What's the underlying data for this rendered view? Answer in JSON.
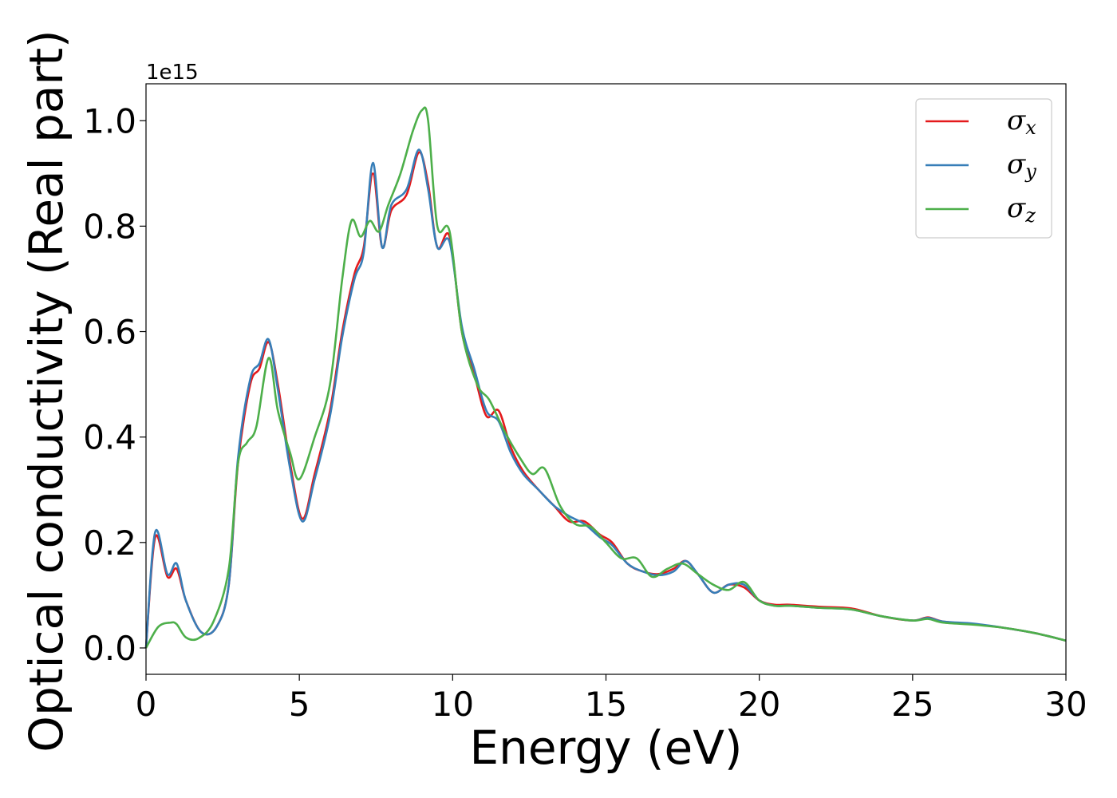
{
  "chart_data": {
    "type": "line",
    "xlabel": "Energy (eV)",
    "ylabel": "Optical conductivity (Real part)",
    "y_offset_label": "1e15",
    "xlim": [
      0,
      30
    ],
    "ylim": [
      -0.05,
      1.07
    ],
    "xticks": [
      0,
      5,
      10,
      15,
      20,
      25,
      30
    ],
    "xtick_labels": [
      "0",
      "5",
      "10",
      "15",
      "20",
      "25",
      "30"
    ],
    "yticks": [
      0.0,
      0.2,
      0.4,
      0.6,
      0.8,
      1.0
    ],
    "ytick_labels": [
      "0.0",
      "0.2",
      "0.4",
      "0.6",
      "0.8",
      "1.0"
    ],
    "grid": false,
    "legend_position": "top-right",
    "series": [
      {
        "name": "σx",
        "symbol": "σ",
        "subscript": "x",
        "color": "#e41a1c",
        "x": [
          0,
          0.3,
          0.7,
          1.0,
          1.3,
          1.8,
          2.3,
          2.7,
          3.0,
          3.4,
          3.7,
          4.0,
          4.3,
          4.7,
          5.1,
          5.5,
          6.0,
          6.4,
          6.8,
          7.1,
          7.4,
          7.7,
          8.0,
          8.5,
          8.9,
          9.2,
          9.5,
          9.9,
          10.3,
          10.7,
          11.1,
          11.5,
          11.9,
          12.3,
          12.8,
          13.3,
          13.8,
          14.3,
          14.8,
          15.2,
          15.7,
          16.2,
          16.7,
          17.2,
          17.6,
          18.0,
          18.5,
          19.0,
          19.5,
          20.0,
          20.5,
          21.0,
          22.0,
          23.0,
          24.0,
          25.0,
          25.5,
          26.0,
          27.0,
          28.0,
          29.0,
          30.0
        ],
        "y": [
          0.0,
          0.21,
          0.135,
          0.15,
          0.09,
          0.03,
          0.04,
          0.12,
          0.35,
          0.5,
          0.53,
          0.58,
          0.5,
          0.35,
          0.245,
          0.33,
          0.45,
          0.6,
          0.71,
          0.76,
          0.9,
          0.76,
          0.83,
          0.86,
          0.94,
          0.88,
          0.76,
          0.78,
          0.6,
          0.52,
          0.44,
          0.45,
          0.38,
          0.335,
          0.3,
          0.27,
          0.24,
          0.24,
          0.215,
          0.2,
          0.16,
          0.145,
          0.14,
          0.15,
          0.165,
          0.14,
          0.105,
          0.12,
          0.115,
          0.09,
          0.082,
          0.082,
          0.078,
          0.075,
          0.06,
          0.052,
          0.058,
          0.05,
          0.045,
          0.038,
          0.028,
          0.014
        ]
      },
      {
        "name": "σy",
        "symbol": "σ",
        "subscript": "y",
        "color": "#377eb8",
        "x": [
          0,
          0.3,
          0.7,
          1.0,
          1.3,
          1.8,
          2.3,
          2.7,
          3.0,
          3.4,
          3.7,
          4.0,
          4.3,
          4.7,
          5.1,
          5.5,
          6.0,
          6.4,
          6.8,
          7.1,
          7.4,
          7.7,
          8.0,
          8.5,
          8.9,
          9.2,
          9.5,
          9.9,
          10.3,
          10.7,
          11.1,
          11.5,
          11.9,
          12.3,
          12.8,
          13.3,
          13.8,
          14.3,
          14.8,
          15.2,
          15.7,
          16.2,
          16.7,
          17.2,
          17.6,
          18.0,
          18.5,
          19.0,
          19.5,
          20.0,
          20.5,
          21.0,
          22.0,
          23.0,
          24.0,
          25.0,
          25.5,
          26.0,
          27.0,
          28.0,
          29.0,
          30.0
        ],
        "y": [
          0.0,
          0.22,
          0.14,
          0.16,
          0.09,
          0.03,
          0.04,
          0.12,
          0.36,
          0.51,
          0.54,
          0.585,
          0.49,
          0.34,
          0.24,
          0.32,
          0.44,
          0.59,
          0.7,
          0.75,
          0.92,
          0.76,
          0.84,
          0.87,
          0.945,
          0.87,
          0.76,
          0.77,
          0.61,
          0.53,
          0.45,
          0.43,
          0.37,
          0.33,
          0.3,
          0.27,
          0.25,
          0.235,
          0.21,
          0.195,
          0.16,
          0.145,
          0.138,
          0.145,
          0.165,
          0.14,
          0.105,
          0.12,
          0.12,
          0.09,
          0.08,
          0.08,
          0.076,
          0.073,
          0.06,
          0.052,
          0.057,
          0.05,
          0.046,
          0.038,
          0.028,
          0.014
        ]
      },
      {
        "name": "σz",
        "symbol": "σ",
        "subscript": "z",
        "color": "#4daf4a",
        "x": [
          0,
          0.4,
          0.8,
          1.0,
          1.3,
          1.7,
          2.2,
          2.7,
          3.0,
          3.3,
          3.6,
          4.0,
          4.3,
          4.7,
          5.0,
          5.5,
          6.0,
          6.4,
          6.7,
          7.0,
          7.3,
          7.6,
          7.9,
          8.3,
          8.7,
          9.0,
          9.2,
          9.5,
          9.9,
          10.3,
          10.8,
          11.2,
          11.7,
          12.2,
          12.6,
          13.0,
          13.5,
          14.0,
          14.5,
          15.0,
          15.5,
          16.0,
          16.5,
          17.0,
          17.5,
          18.0,
          18.5,
          19.0,
          19.5,
          20.0,
          20.5,
          21.0,
          22.0,
          23.0,
          24.0,
          25.0,
          25.5,
          26.0,
          27.0,
          28.0,
          29.0,
          30.0
        ],
        "y": [
          0.0,
          0.04,
          0.048,
          0.045,
          0.02,
          0.018,
          0.05,
          0.15,
          0.35,
          0.39,
          0.42,
          0.55,
          0.45,
          0.37,
          0.32,
          0.4,
          0.5,
          0.7,
          0.81,
          0.78,
          0.81,
          0.79,
          0.84,
          0.9,
          0.98,
          1.02,
          1.0,
          0.8,
          0.79,
          0.6,
          0.5,
          0.47,
          0.41,
          0.36,
          0.33,
          0.34,
          0.27,
          0.235,
          0.23,
          0.2,
          0.17,
          0.17,
          0.135,
          0.15,
          0.16,
          0.14,
          0.12,
          0.11,
          0.125,
          0.09,
          0.08,
          0.08,
          0.076,
          0.073,
          0.06,
          0.052,
          0.055,
          0.048,
          0.044,
          0.038,
          0.028,
          0.014
        ]
      }
    ]
  }
}
